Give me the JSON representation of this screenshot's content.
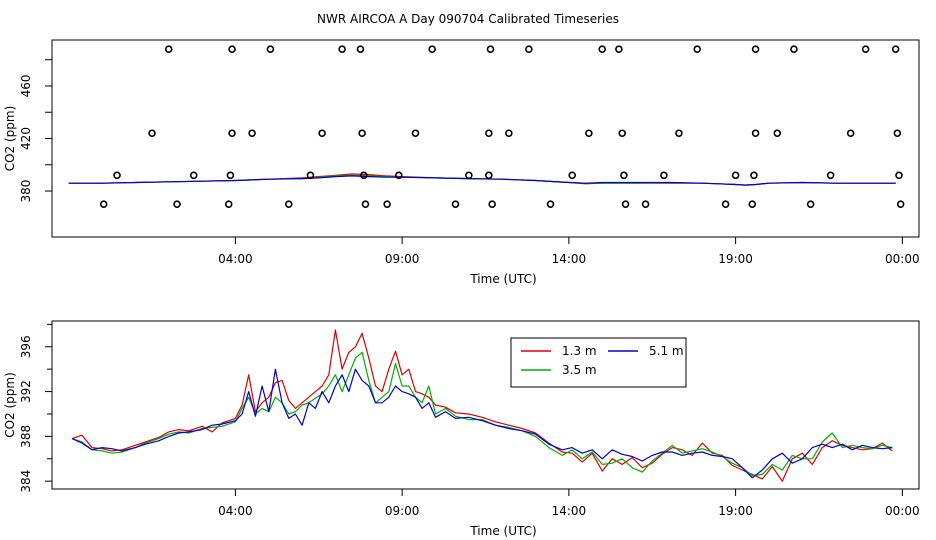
{
  "page_title": "NWR AIRCOA A  Day 090704  Calibrated Timeseries",
  "chart_data": [
    {
      "type": "scatter",
      "name": "calibration-standards",
      "xlabel": "Time (UTC)",
      "ylabel": "CO2 (ppm)",
      "xlim": [
        -1.5,
        24.5
      ],
      "ylim": [
        345,
        495
      ],
      "xtick_values": [
        4,
        9,
        14,
        19,
        24
      ],
      "xtick_labels": [
        "04:00",
        "09:00",
        "14:00",
        "19:00",
        "00:00"
      ],
      "ytick_values": [
        380,
        420,
        460
      ],
      "ytick_labels": [
        "380",
        "420",
        "460"
      ],
      "points": {
        "x": [
          2.0,
          3.9,
          5.05,
          7.2,
          7.75,
          9.9,
          11.65,
          12.8,
          15.0,
          15.5,
          17.85,
          19.6,
          20.75,
          22.9,
          23.8,
          1.5,
          3.9,
          4.5,
          6.6,
          7.8,
          9.4,
          11.6,
          12.2,
          14.6,
          15.6,
          17.3,
          19.6,
          20.25,
          22.45,
          23.85,
          0.45,
          2.75,
          3.85,
          6.25,
          7.85,
          8.9,
          11.0,
          11.6,
          14.1,
          15.65,
          16.85,
          19.0,
          19.55,
          21.85,
          23.9,
          0.05,
          2.25,
          3.8,
          5.6,
          7.9,
          8.55,
          10.6,
          11.7,
          13.45,
          15.7,
          16.3,
          18.7,
          19.5,
          21.25,
          23.95
        ],
        "y": [
          488,
          488,
          488,
          488,
          488,
          488,
          488,
          488,
          488,
          488,
          488,
          488,
          488,
          488,
          488,
          424,
          424,
          424,
          424,
          424,
          424,
          424,
          424,
          424,
          424,
          424,
          424,
          424,
          424,
          424,
          392,
          392,
          392,
          392,
          392,
          392,
          392,
          392,
          392,
          392,
          392,
          392,
          392,
          392,
          392,
          370,
          370,
          370,
          370,
          370,
          370,
          370,
          370,
          370,
          370,
          370,
          370,
          370,
          370,
          370
        ]
      },
      "baseline_series": [
        {
          "name": "1.3 m",
          "color": "#e00000",
          "x": [
            -1,
            0,
            1,
            2,
            3,
            4,
            5,
            6,
            6.5,
            7,
            7.5,
            8,
            8.5,
            9,
            10,
            11,
            12,
            13,
            14,
            14.5,
            15,
            16,
            17,
            18,
            18.5,
            19,
            19.3,
            19.6,
            20,
            21,
            22,
            23,
            23.8
          ],
          "y": [
            386,
            386,
            386.5,
            387,
            387.5,
            388,
            389,
            390,
            391,
            392,
            393,
            392.5,
            391.5,
            391,
            390,
            389.5,
            389,
            388,
            386.5,
            385.5,
            386,
            386,
            386,
            386,
            385.5,
            385,
            384.5,
            385,
            386,
            386.5,
            386,
            386,
            386
          ]
        },
        {
          "name": "3.5 m",
          "color": "#00b000",
          "x": [
            -1,
            0,
            1,
            2,
            3,
            4,
            5,
            6,
            6.5,
            7,
            7.5,
            8,
            8.5,
            9,
            10,
            11,
            12,
            13,
            14,
            14.5,
            15,
            16,
            17,
            18,
            18.5,
            19,
            19.3,
            19.6,
            20,
            21,
            22,
            23,
            23.8
          ],
          "y": [
            386,
            386,
            386.5,
            387,
            387.5,
            388,
            389,
            389.5,
            390.5,
            391.5,
            392,
            391.5,
            391,
            390.5,
            390,
            389.5,
            389,
            388,
            386.5,
            386,
            386,
            386,
            386.5,
            386,
            385.5,
            385,
            384.5,
            385,
            386,
            386.5,
            386,
            386,
            386
          ]
        },
        {
          "name": "5.1 m",
          "color": "#0000d0",
          "x": [
            -1,
            0,
            1,
            2,
            3,
            4,
            5,
            6,
            6.5,
            7,
            7.5,
            8,
            8.5,
            9,
            10,
            11,
            12,
            13,
            14,
            14.5,
            15,
            16,
            17,
            18,
            18.5,
            19,
            19.3,
            19.6,
            20,
            21,
            22,
            23,
            23.8
          ],
          "y": [
            386,
            386,
            386.5,
            387,
            387.5,
            388,
            389,
            389.5,
            390,
            391,
            391.5,
            391,
            390.5,
            390.5,
            390,
            389.5,
            389,
            388,
            386.5,
            386,
            386.5,
            386.5,
            386.5,
            386,
            385.5,
            385,
            384.5,
            385,
            386,
            386.5,
            386,
            386,
            386
          ]
        }
      ]
    },
    {
      "type": "line",
      "name": "inlet-timeseries",
      "xlabel": "Time (UTC)",
      "ylabel": "CO2 (ppm)",
      "xlim": [
        -1.5,
        24.5
      ],
      "ylim": [
        383.3,
        398.3
      ],
      "xtick_values": [
        4,
        9,
        14,
        19,
        24
      ],
      "xtick_labels": [
        "04:00",
        "09:00",
        "14:00",
        "19:00",
        "00:00"
      ],
      "ytick_values": [
        384,
        388,
        392,
        396
      ],
      "ytick_labels": [
        "384",
        "388",
        "392",
        "396"
      ],
      "legend": {
        "position": "top-center",
        "entries": [
          "1.3 m",
          "5.1 m",
          "3.5 m"
        ]
      },
      "series": [
        {
          "name": "1.3 m",
          "color": "#e00000",
          "x": [
            -0.9,
            -0.6,
            -0.3,
            0,
            0.3,
            0.6,
            1,
            1.3,
            1.7,
            2,
            2.3,
            2.6,
            3,
            3.3,
            3.6,
            4,
            4.2,
            4.4,
            4.6,
            4.8,
            5,
            5.2,
            5.4,
            5.6,
            5.8,
            6,
            6.2,
            6.4,
            6.6,
            6.8,
            7,
            7.2,
            7.4,
            7.6,
            7.8,
            8,
            8.2,
            8.4,
            8.6,
            8.8,
            9,
            9.2,
            9.4,
            9.6,
            9.8,
            10,
            10.3,
            10.6,
            11,
            11.4,
            11.8,
            12.2,
            12.6,
            13,
            13.4,
            13.8,
            14.1,
            14.4,
            14.7,
            15,
            15.3,
            15.6,
            15.9,
            16.2,
            16.5,
            16.8,
            17.1,
            17.4,
            17.7,
            18,
            18.3,
            18.6,
            18.9,
            19.2,
            19.5,
            19.8,
            20.1,
            20.4,
            20.7,
            21,
            21.3,
            21.6,
            21.9,
            22.2,
            22.5,
            22.8,
            23.1,
            23.4,
            23.7
          ],
          "y": [
            387.8,
            388.1,
            387.0,
            386.9,
            386.7,
            386.8,
            387.2,
            387.5,
            387.9,
            388.4,
            388.6,
            388.5,
            388.9,
            388.4,
            389.2,
            389.6,
            390.8,
            393.5,
            390.2,
            391.0,
            391.5,
            392.8,
            393.0,
            391.2,
            390.5,
            391.0,
            391.5,
            392.0,
            392.5,
            393.5,
            397.5,
            394.0,
            395.5,
            396.0,
            397.2,
            395.0,
            392.5,
            392.0,
            394.0,
            395.6,
            393.5,
            394.0,
            392.0,
            391.8,
            391.5,
            390.8,
            390.6,
            390.1,
            390.0,
            389.7,
            389.3,
            389.0,
            388.7,
            388.3,
            387.4,
            386.6,
            386.5,
            385.7,
            386.5,
            384.9,
            386.0,
            385.5,
            386.1,
            385.2,
            385.6,
            386.4,
            387.0,
            386.8,
            386.3,
            387.4,
            386.5,
            386.3,
            385.4,
            385.0,
            384.6,
            384.2,
            385.3,
            384.0,
            386.0,
            386.5,
            385.5,
            387.0,
            387.6,
            387.2,
            387.0,
            386.8,
            386.9,
            387.4,
            386.7
          ]
        },
        {
          "name": "3.5 m",
          "color": "#00b000",
          "x": [
            -0.9,
            -0.6,
            -0.3,
            0,
            0.3,
            0.6,
            1,
            1.3,
            1.7,
            2,
            2.3,
            2.6,
            3,
            3.3,
            3.6,
            4,
            4.2,
            4.4,
            4.6,
            4.8,
            5,
            5.2,
            5.4,
            5.6,
            5.8,
            6,
            6.2,
            6.4,
            6.6,
            6.8,
            7,
            7.2,
            7.4,
            7.6,
            7.8,
            8,
            8.2,
            8.4,
            8.6,
            8.8,
            9,
            9.2,
            9.4,
            9.6,
            9.8,
            10,
            10.3,
            10.6,
            11,
            11.4,
            11.8,
            12.2,
            12.6,
            13,
            13.4,
            13.8,
            14.1,
            14.4,
            14.7,
            15,
            15.3,
            15.6,
            15.9,
            16.2,
            16.5,
            16.8,
            17.1,
            17.4,
            17.7,
            18,
            18.3,
            18.6,
            18.9,
            19.2,
            19.5,
            19.8,
            20.1,
            20.4,
            20.7,
            21,
            21.3,
            21.6,
            21.9,
            22.2,
            22.5,
            22.8,
            23.1,
            23.4,
            23.7
          ],
          "y": [
            387.8,
            387.5,
            386.8,
            386.7,
            386.5,
            386.6,
            387.0,
            387.4,
            387.8,
            388.2,
            388.4,
            388.3,
            388.7,
            388.8,
            388.9,
            389.3,
            390.5,
            391.5,
            390.0,
            390.5,
            390.2,
            391.5,
            391.0,
            390.0,
            390.2,
            390.8,
            391.0,
            391.4,
            391.8,
            392.5,
            393.5,
            392.0,
            393.5,
            395.0,
            395.5,
            393.0,
            391.0,
            391.5,
            392.0,
            394.5,
            392.5,
            392.5,
            391.5,
            391.0,
            392.5,
            390.0,
            390.5,
            389.8,
            389.5,
            389.5,
            389.0,
            388.8,
            388.5,
            388.0,
            387.0,
            386.3,
            386.8,
            386.0,
            386.6,
            385.5,
            385.6,
            386.0,
            385.2,
            384.8,
            385.8,
            386.5,
            387.2,
            386.5,
            386.7,
            386.9,
            386.6,
            386.2,
            385.6,
            385.2,
            384.5,
            384.6,
            385.5,
            385.0,
            386.3,
            386.0,
            386.0,
            387.5,
            388.3,
            387.0,
            387.2,
            387.0,
            386.9,
            387.2,
            387.0
          ]
        },
        {
          "name": "5.1 m",
          "color": "#0000d0",
          "x": [
            -0.9,
            -0.6,
            -0.3,
            0,
            0.3,
            0.6,
            1,
            1.3,
            1.7,
            2,
            2.3,
            2.6,
            3,
            3.3,
            3.6,
            4,
            4.2,
            4.4,
            4.6,
            4.8,
            5,
            5.2,
            5.4,
            5.6,
            5.8,
            6,
            6.2,
            6.4,
            6.6,
            6.8,
            7,
            7.2,
            7.4,
            7.6,
            7.8,
            8,
            8.2,
            8.4,
            8.6,
            8.8,
            9,
            9.2,
            9.4,
            9.6,
            9.8,
            10,
            10.3,
            10.6,
            11,
            11.4,
            11.8,
            12.2,
            12.6,
            13,
            13.4,
            13.8,
            14.1,
            14.4,
            14.7,
            15,
            15.3,
            15.6,
            15.9,
            16.2,
            16.5,
            16.8,
            17.1,
            17.4,
            17.7,
            18,
            18.3,
            18.6,
            18.9,
            19.2,
            19.5,
            19.8,
            20.1,
            20.4,
            20.7,
            21,
            21.3,
            21.6,
            21.9,
            22.2,
            22.5,
            22.8,
            23.1,
            23.4,
            23.7
          ],
          "y": [
            387.8,
            387.4,
            386.8,
            387.0,
            386.9,
            386.7,
            387.0,
            387.3,
            387.6,
            388.0,
            388.3,
            388.4,
            388.6,
            389.0,
            389.1,
            389.4,
            390.0,
            392.0,
            389.8,
            392.5,
            390.2,
            394.0,
            391.0,
            389.6,
            390.0,
            389.0,
            391.0,
            390.5,
            392.0,
            391.0,
            392.5,
            393.5,
            392.0,
            394.0,
            393.0,
            392.5,
            391.0,
            391.0,
            391.5,
            392.5,
            392.0,
            391.8,
            391.5,
            390.5,
            391.0,
            389.7,
            390.2,
            389.6,
            389.7,
            389.4,
            389.0,
            388.7,
            388.5,
            388.2,
            387.3,
            386.8,
            387.0,
            386.5,
            386.8,
            386.0,
            386.8,
            386.4,
            386.2,
            385.8,
            386.3,
            386.6,
            386.6,
            386.3,
            386.5,
            386.6,
            386.3,
            386.2,
            386.0,
            385.2,
            384.3,
            385.0,
            386.0,
            386.5,
            385.6,
            386.0,
            387.0,
            387.3,
            387.0,
            387.3,
            386.8,
            387.2,
            387.0,
            386.9,
            387.0
          ]
        }
      ]
    }
  ]
}
